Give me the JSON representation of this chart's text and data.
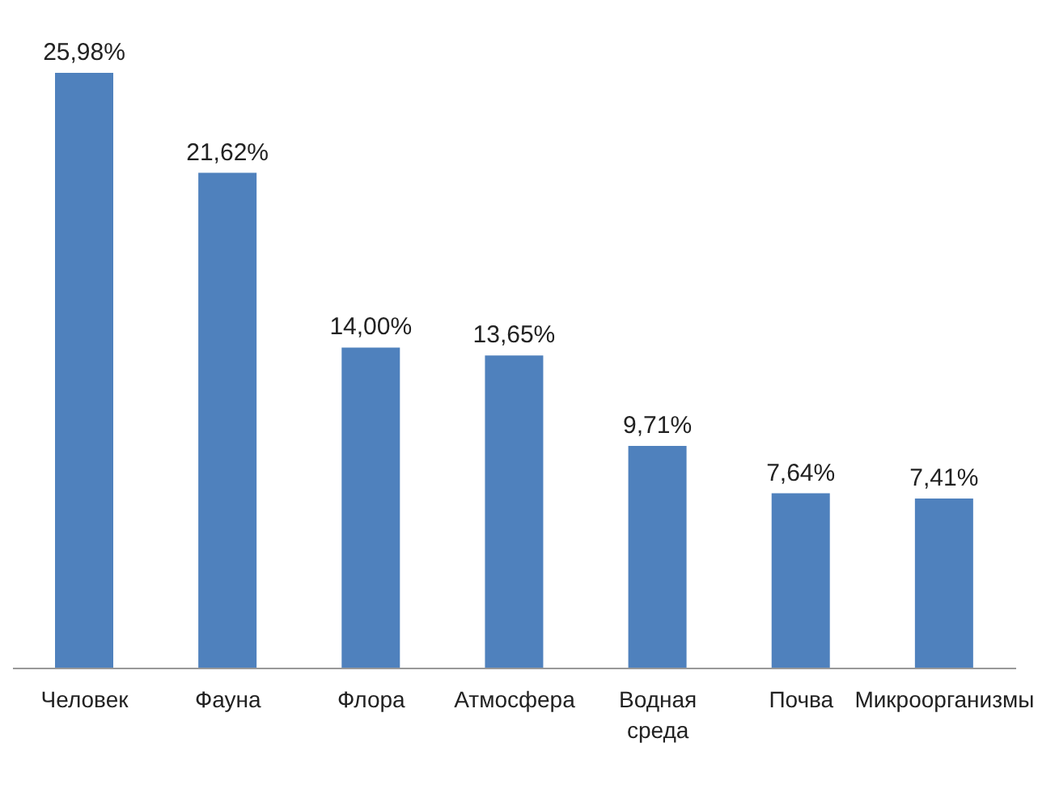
{
  "chart_data": {
    "type": "bar",
    "categories": [
      "Человек",
      "Фауна",
      "Флора",
      "Атмосфера",
      "Водная среда",
      "Почва",
      "Микроорганизмы"
    ],
    "values": [
      25.98,
      21.62,
      14.0,
      13.65,
      9.71,
      7.64,
      7.41
    ],
    "value_labels": [
      "25,98%",
      "21,62%",
      "14,00%",
      "13,65%",
      "9,71%",
      "7,64%",
      "7,41%"
    ],
    "color": "#4f81bd",
    "tick_labels": "x",
    "grid": false,
    "legend": false
  }
}
